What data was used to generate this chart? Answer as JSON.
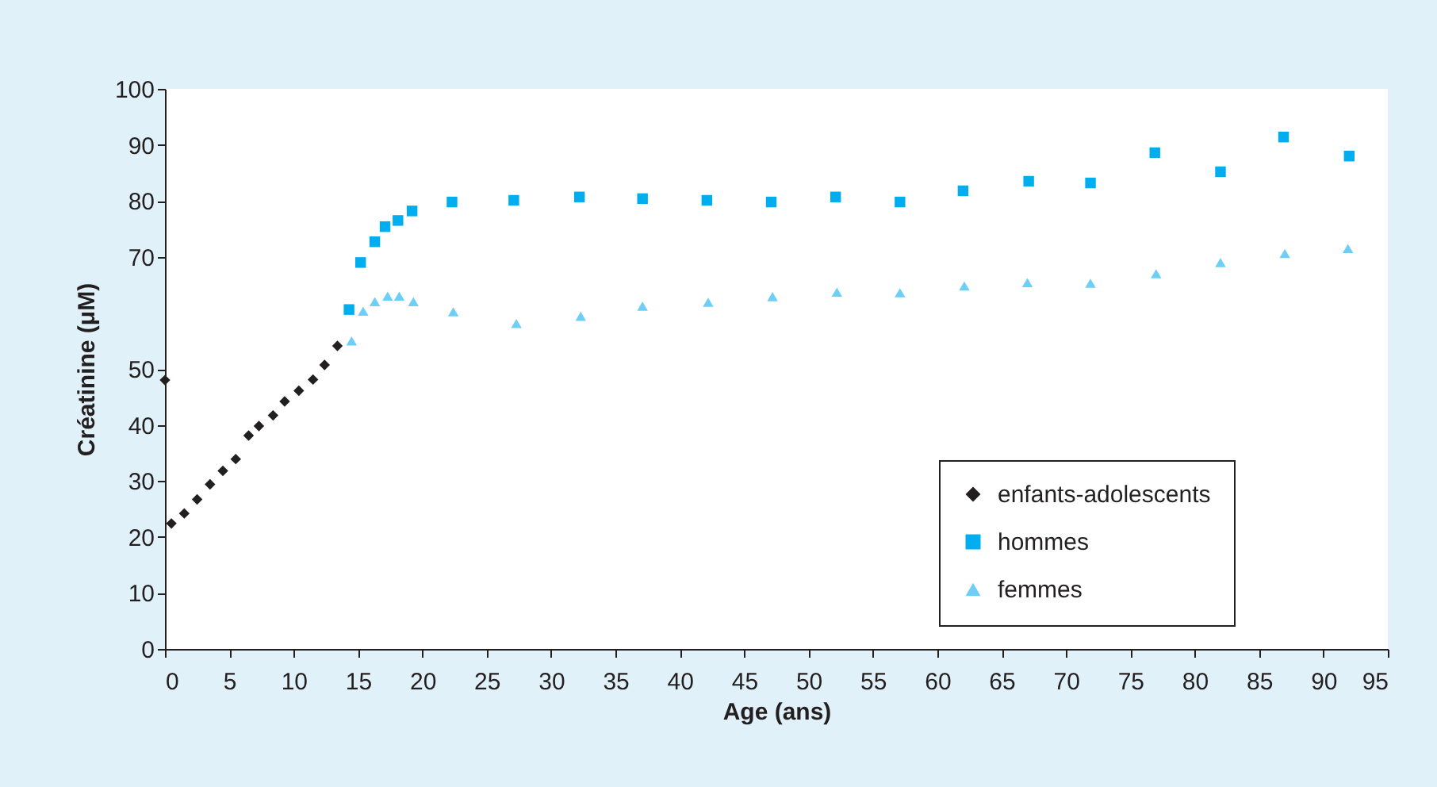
{
  "chart_data": {
    "type": "scatter",
    "xlabel": "Age (ans)",
    "ylabel": "Créatinine (μM)",
    "xlim": [
      0,
      95
    ],
    "xticks": [
      0,
      5,
      10,
      15,
      20,
      25,
      30,
      35,
      40,
      45,
      50,
      55,
      60,
      65,
      70,
      75,
      80,
      85,
      90,
      95
    ],
    "ylim": [
      0,
      100
    ],
    "yticks": [
      0,
      10,
      20,
      30,
      40,
      50,
      70,
      80,
      90,
      100
    ],
    "grid": false,
    "legend": "bottom right",
    "series": [
      {
        "name": "enfants-adolescents",
        "color": "#231f20",
        "marker": "diamond",
        "x": [
          0,
          0.5,
          1.5,
          2.5,
          3.5,
          4.5,
          5.5,
          6.5,
          7.3,
          8.4,
          9.3,
          10.4,
          11.5,
          12.4,
          13.4
        ],
        "values": [
          48,
          22.4,
          24.2,
          26.7,
          29.4,
          31.8,
          33.9,
          38.1,
          39.8,
          41.7,
          44.2,
          46.1,
          48.1,
          50.7,
          54.1
        ]
      },
      {
        "name": "hommes",
        "color": "#00aeef",
        "marker": "square",
        "x": [
          14.3,
          15.2,
          16.3,
          17.1,
          18.1,
          19.2,
          22.3,
          27.1,
          32.2,
          37.1,
          42.1,
          47.1,
          52.1,
          57.1,
          62.0,
          67.1,
          71.9,
          76.9,
          82.0,
          86.9,
          92.0
        ],
        "values": [
          60.6,
          69.0,
          72.7,
          75.4,
          76.5,
          78.2,
          79.8,
          80.1,
          80.7,
          80.4,
          80.1,
          79.8,
          80.7,
          79.8,
          81.8,
          83.5,
          83.2,
          88.6,
          85.2,
          91.4,
          88.0
        ]
      },
      {
        "name": "femmes",
        "color": "#6dcff6",
        "marker": "triangle",
        "x": [
          14.5,
          15.4,
          16.3,
          17.3,
          18.2,
          19.3,
          22.4,
          27.3,
          32.3,
          37.1,
          42.2,
          47.2,
          52.2,
          57.1,
          62.1,
          67.0,
          71.9,
          77.0,
          82.0,
          87.0,
          91.9
        ],
        "values": [
          55.0,
          60.3,
          62.0,
          63.0,
          63.0,
          62.0,
          60.2,
          58.1,
          59.4,
          61.2,
          61.9,
          62.9,
          63.7,
          63.6,
          64.8,
          65.4,
          65.3,
          67.0,
          69.0,
          70.6,
          71.5
        ]
      }
    ]
  }
}
